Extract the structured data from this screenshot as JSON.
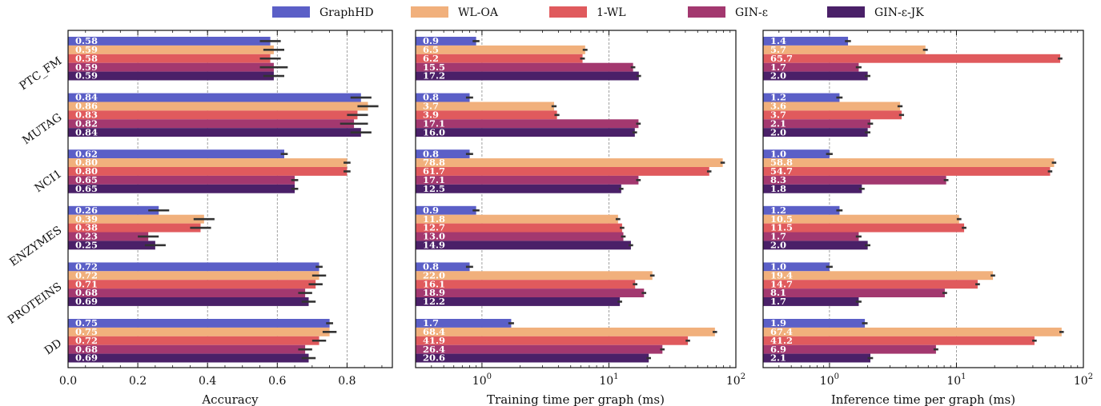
{
  "legend": [
    "GraphHD",
    "WL-OA",
    "1-WL",
    "GIN-ε",
    "GIN-ε-JK"
  ],
  "colors": {
    "GraphHD": "#5b5fc7",
    "WL-OA": "#f1b07c",
    "1-WL": "#e05a5d",
    "GIN-ε": "#a3386f",
    "GIN-ε-JK": "#4a2068",
    "error_bar": "#333333"
  },
  "datasets": [
    "PTC_FM",
    "MUTAG",
    "NCI1",
    "ENZYMES",
    "PROTEINS",
    "DD"
  ],
  "chart_data": [
    {
      "type": "bar",
      "orientation": "horizontal",
      "xlabel": "Accuracy",
      "xscale": "linear",
      "xlim": [
        0.0,
        0.93
      ],
      "xticks": [
        "0.0",
        "0.2",
        "0.4",
        "0.6",
        "0.8"
      ],
      "grid": "vertical dashed",
      "categories": [
        "PTC_FM",
        "MUTAG",
        "NCI1",
        "ENZYMES",
        "PROTEINS",
        "DD"
      ],
      "series": [
        {
          "name": "GraphHD",
          "values": [
            0.58,
            0.84,
            0.62,
            0.26,
            0.72,
            0.75
          ],
          "labels": [
            "0.58",
            "0.84",
            "0.62",
            "0.26",
            "0.72",
            "0.75"
          ]
        },
        {
          "name": "WL-OA",
          "values": [
            0.59,
            0.86,
            0.8,
            0.39,
            0.72,
            0.75
          ],
          "labels": [
            "0.59",
            "0.86",
            "0.80",
            "0.39",
            "0.72",
            "0.75"
          ]
        },
        {
          "name": "1-WL",
          "values": [
            0.58,
            0.83,
            0.8,
            0.38,
            0.71,
            0.72
          ],
          "labels": [
            "0.58",
            "0.83",
            "0.80",
            "0.38",
            "0.71",
            "0.72"
          ]
        },
        {
          "name": "GIN-ε",
          "values": [
            0.59,
            0.82,
            0.65,
            0.23,
            0.68,
            0.68
          ],
          "labels": [
            "0.59",
            "0.82",
            "0.65",
            "0.23",
            "0.68",
            "0.68"
          ]
        },
        {
          "name": "GIN-ε-JK",
          "values": [
            0.59,
            0.84,
            0.65,
            0.25,
            0.69,
            0.69
          ],
          "labels": [
            "0.59",
            "0.84",
            "0.65",
            "0.25",
            "0.69",
            "0.69"
          ]
        }
      ],
      "errors": [
        [
          0.03,
          0.03,
          0.01,
          0.03,
          0.01,
          0.01
        ],
        [
          0.03,
          0.03,
          0.01,
          0.03,
          0.02,
          0.02
        ],
        [
          0.03,
          0.03,
          0.01,
          0.03,
          0.02,
          0.02
        ],
        [
          0.04,
          0.04,
          0.01,
          0.03,
          0.02,
          0.02
        ],
        [
          0.03,
          0.03,
          0.01,
          0.03,
          0.02,
          0.02
        ]
      ]
    },
    {
      "type": "bar",
      "orientation": "horizontal",
      "xlabel": "Training time per graph (ms)",
      "xscale": "log",
      "xlim": [
        0.3,
        100
      ],
      "xticks": [
        "10^0",
        "10^1",
        "10^2"
      ],
      "grid": "vertical dashed",
      "categories": [
        "PTC_FM",
        "MUTAG",
        "NCI1",
        "ENZYMES",
        "PROTEINS",
        "DD"
      ],
      "series": [
        {
          "name": "GraphHD",
          "values": [
            0.9,
            0.8,
            0.8,
            0.9,
            0.8,
            1.7
          ],
          "labels": [
            "0.9",
            "0.8",
            "0.8",
            "0.9",
            "0.8",
            "1.7"
          ]
        },
        {
          "name": "WL-OA",
          "values": [
            6.5,
            3.7,
            78.8,
            11.8,
            22.0,
            68.4
          ],
          "labels": [
            "6.5",
            "3.7",
            "78.8",
            "11.8",
            "22.0",
            "68.4"
          ]
        },
        {
          "name": "1-WL",
          "values": [
            6.2,
            3.9,
            61.7,
            12.7,
            16.1,
            41.9
          ],
          "labels": [
            "6.2",
            "3.9",
            "61.7",
            "12.7",
            "16.1",
            "41.9"
          ]
        },
        {
          "name": "GIN-ε",
          "values": [
            15.5,
            17.1,
            17.1,
            13.0,
            18.9,
            26.4
          ],
          "labels": [
            "15.5",
            "17.1",
            "17.1",
            "13.0",
            "18.9",
            "26.4"
          ]
        },
        {
          "name": "GIN-ε-JK",
          "values": [
            17.2,
            16.0,
            12.5,
            14.9,
            12.2,
            20.6
          ],
          "labels": [
            "17.2",
            "16.0",
            "12.5",
            "14.9",
            "12.2",
            "20.6"
          ]
        }
      ]
    },
    {
      "type": "bar",
      "orientation": "horizontal",
      "xlabel": "Inference time per graph (ms)",
      "xscale": "log",
      "xlim": [
        0.3,
        100
      ],
      "xticks": [
        "10^0",
        "10^1",
        "10^2"
      ],
      "grid": "vertical dashed",
      "categories": [
        "PTC_FM",
        "MUTAG",
        "NCI1",
        "ENZYMES",
        "PROTEINS",
        "DD"
      ],
      "series": [
        {
          "name": "GraphHD",
          "values": [
            1.4,
            1.2,
            1.0,
            1.2,
            1.0,
            1.9
          ],
          "labels": [
            "1.4",
            "1.2",
            "1.0",
            "1.2",
            "1.0",
            "1.9"
          ]
        },
        {
          "name": "WL-OA",
          "values": [
            5.7,
            3.6,
            58.8,
            10.5,
            19.4,
            67.4
          ],
          "labels": [
            "5.7",
            "3.6",
            "58.8",
            "10.5",
            "19.4",
            "67.4"
          ]
        },
        {
          "name": "1-WL",
          "values": [
            65.7,
            3.7,
            54.7,
            11.5,
            14.7,
            41.2
          ],
          "labels": [
            "65.7",
            "3.7",
            "54.7",
            "11.5",
            "14.7",
            "41.2"
          ]
        },
        {
          "name": "GIN-ε",
          "values": [
            1.7,
            2.1,
            8.3,
            1.7,
            8.1,
            6.9
          ],
          "labels": [
            "1.7",
            "2.1",
            "8.3",
            "1.7",
            "8.1",
            "6.9"
          ]
        },
        {
          "name": "GIN-ε-JK",
          "values": [
            2.0,
            2.0,
            1.8,
            2.0,
            1.7,
            2.1
          ],
          "labels": [
            "2.0",
            "2.0",
            "1.8",
            "2.0",
            "1.7",
            "2.1"
          ]
        }
      ]
    }
  ]
}
